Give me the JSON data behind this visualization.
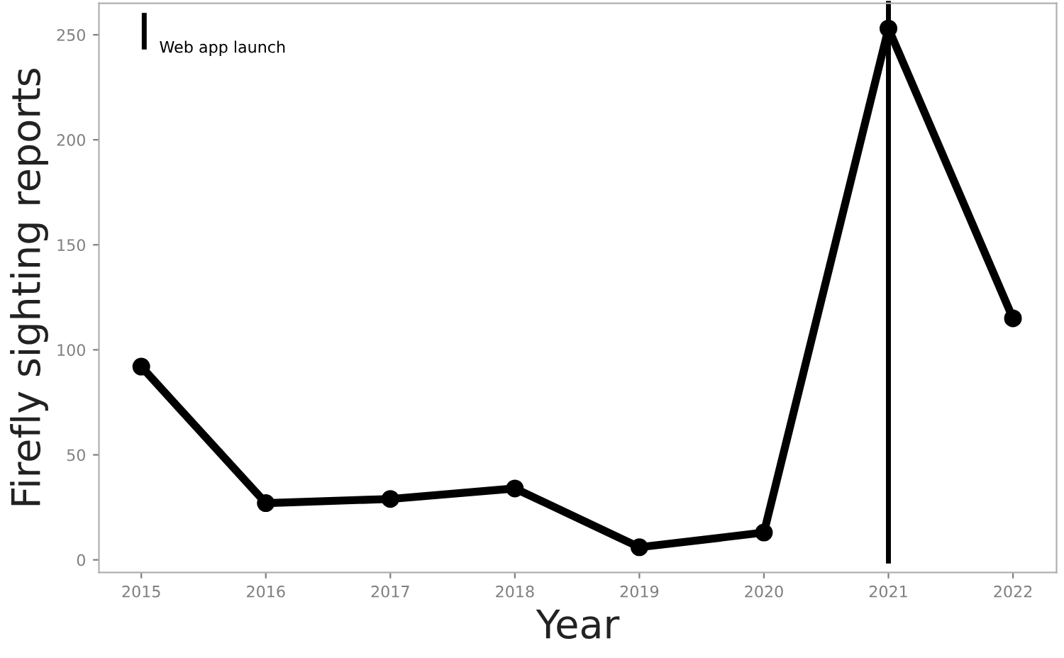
{
  "chart_data": {
    "type": "line",
    "xlabel": "Year",
    "ylabel": "Firefly sighting reports",
    "x": [
      2015,
      2016,
      2017,
      2018,
      2019,
      2020,
      2021,
      2022
    ],
    "series": [
      {
        "color": "#000000",
        "values": [
          92,
          27,
          29,
          34,
          6,
          13,
          253,
          115
        ]
      }
    ],
    "xlim": [
      2014.66,
      2022.35
    ],
    "xticks": [
      2015,
      2016,
      2017,
      2018,
      2019,
      2020,
      2021,
      2022
    ],
    "ylim": [
      -6,
      265
    ],
    "yticks": [
      0,
      50,
      100,
      150,
      200,
      250
    ],
    "ref_lines": [
      {
        "axis": "x",
        "value": 2021,
        "label": "Web app launch",
        "color": "#000000",
        "line_style": "solid"
      }
    ],
    "marker": "circle",
    "line_style": "solid",
    "grid": false,
    "legend": "top left"
  }
}
